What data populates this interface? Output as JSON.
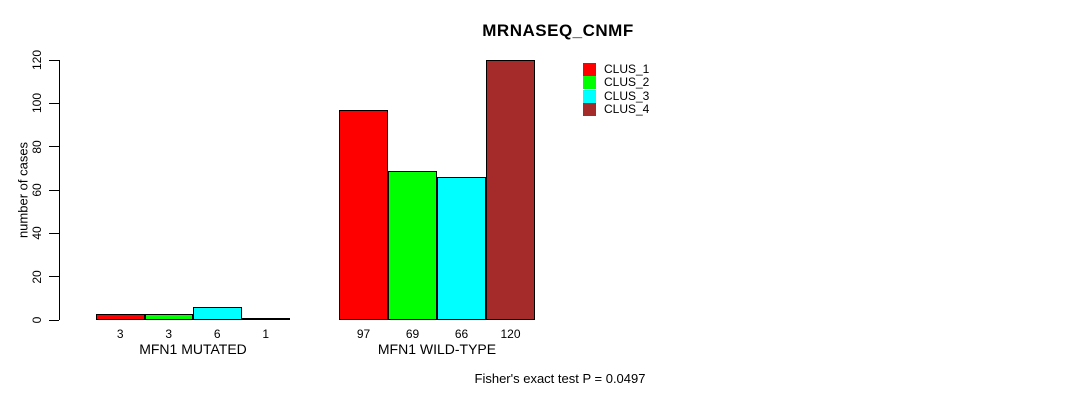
{
  "title": "MRNASEQ_CNMF",
  "footer": "Fisher's exact test P = 0.0497",
  "chart_data": {
    "type": "bar",
    "title": "MRNASEQ_CNMF",
    "xlabel": "",
    "ylabel": "number of cases",
    "categories": [
      "MFN1 MUTATED",
      "MFN1 WILD-TYPE"
    ],
    "series": [
      {
        "name": "CLUS_1",
        "color": "#FF0000",
        "values": [
          3,
          97
        ]
      },
      {
        "name": "CLUS_2",
        "color": "#00FF00",
        "values": [
          3,
          69
        ]
      },
      {
        "name": "CLUS_3",
        "color": "#00FFFF",
        "values": [
          6,
          66
        ]
      },
      {
        "name": "CLUS_4",
        "color": "#A52A2A",
        "values": [
          1,
          120
        ]
      }
    ],
    "ylim": [
      0,
      120
    ],
    "yticks": [
      0,
      20,
      40,
      60,
      80,
      100,
      120
    ],
    "bar_value_labels": true,
    "grid": false,
    "legend_position": "top-right-inside",
    "annotation": "Fisher's exact test P = 0.0497"
  }
}
